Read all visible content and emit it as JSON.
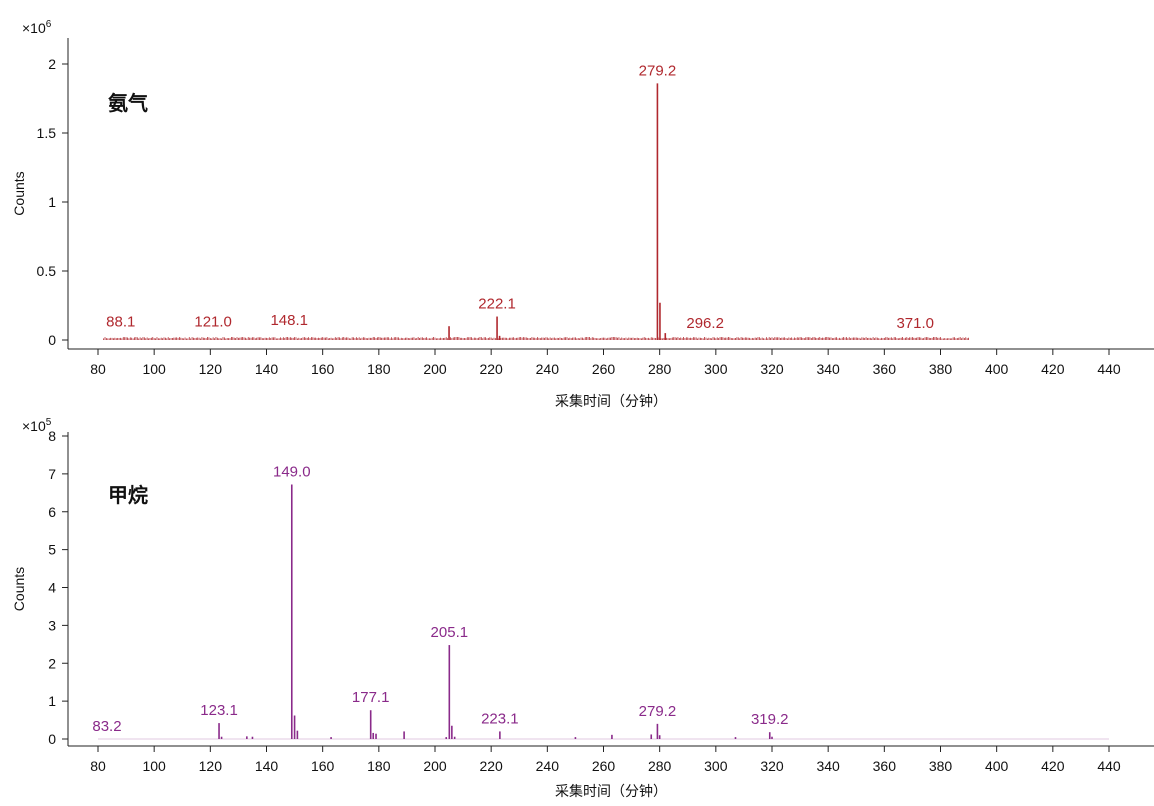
{
  "chart_data": [
    {
      "type": "bar",
      "gas_label": "氨气",
      "color": "#b0282e",
      "ylabel": "Counts",
      "xlabel": "采集时间（分钟）",
      "scale_base": "×10",
      "scale_exponent": "6",
      "ylim": [
        0,
        2.2
      ],
      "yticks": [
        "0",
        "0.5",
        "1",
        "1.5",
        "2"
      ],
      "ytick_values": [
        0,
        0.5,
        1,
        1.5,
        2
      ],
      "xlim": [
        75,
        452
      ],
      "xticks": [
        80,
        100,
        120,
        140,
        160,
        180,
        200,
        220,
        240,
        260,
        280,
        300,
        320,
        340,
        360,
        380,
        400,
        420,
        440
      ],
      "peaks": [
        {
          "x": 205.0,
          "y": 0.1
        },
        {
          "x": 222.1,
          "y": 0.17
        },
        {
          "x": 223.0,
          "y": 0.03
        },
        {
          "x": 279.2,
          "y": 1.86
        },
        {
          "x": 280.1,
          "y": 0.27
        },
        {
          "x": 282.0,
          "y": 0.05
        }
      ],
      "labels": [
        {
          "x": 88.1,
          "text": "88.1",
          "y": 0.04
        },
        {
          "x": 121.0,
          "text": "121.0",
          "y": 0.04
        },
        {
          "x": 148.1,
          "text": "148.1",
          "y": 0.05
        },
        {
          "x": 222.1,
          "text": "222.1",
          "y": 0.17
        },
        {
          "x": 279.2,
          "text": "279.2",
          "y": 1.86
        },
        {
          "x": 296.2,
          "text": "296.2",
          "y": 0.03
        },
        {
          "x": 371.0,
          "text": "371.0",
          "y": 0.03
        }
      ],
      "baseline_range": [
        82,
        390
      ]
    },
    {
      "type": "bar",
      "gas_label": "甲烷",
      "color": "#8a2a8a",
      "ylabel": "Counts",
      "xlabel": "采集时间（分钟）",
      "scale_base": "×10",
      "scale_exponent": "5",
      "ylim": [
        0,
        8
      ],
      "yticks": [
        "0",
        "1",
        "2",
        "3",
        "4",
        "5",
        "6",
        "7",
        "8"
      ],
      "ytick_values": [
        0,
        1,
        2,
        3,
        4,
        5,
        6,
        7,
        8
      ],
      "xlim": [
        75,
        452
      ],
      "xticks": [
        80,
        100,
        120,
        140,
        160,
        180,
        200,
        220,
        240,
        260,
        280,
        300,
        320,
        340,
        360,
        380,
        400,
        420,
        440
      ],
      "peaks": [
        {
          "x": 123.1,
          "y": 0.42
        },
        {
          "x": 124.0,
          "y": 0.06
        },
        {
          "x": 133.0,
          "y": 0.07
        },
        {
          "x": 135.0,
          "y": 0.06
        },
        {
          "x": 149.0,
          "y": 6.72
        },
        {
          "x": 150.0,
          "y": 0.62
        },
        {
          "x": 151.0,
          "y": 0.22
        },
        {
          "x": 163.0,
          "y": 0.05
        },
        {
          "x": 177.1,
          "y": 0.76
        },
        {
          "x": 178.0,
          "y": 0.16
        },
        {
          "x": 179.0,
          "y": 0.14
        },
        {
          "x": 189.0,
          "y": 0.2
        },
        {
          "x": 204.0,
          "y": 0.05
        },
        {
          "x": 205.1,
          "y": 2.48
        },
        {
          "x": 206.0,
          "y": 0.35
        },
        {
          "x": 207.0,
          "y": 0.06
        },
        {
          "x": 223.1,
          "y": 0.2
        },
        {
          "x": 250.0,
          "y": 0.05
        },
        {
          "x": 263.0,
          "y": 0.11
        },
        {
          "x": 277.0,
          "y": 0.12
        },
        {
          "x": 279.2,
          "y": 0.4
        },
        {
          "x": 280.0,
          "y": 0.1
        },
        {
          "x": 307.0,
          "y": 0.05
        },
        {
          "x": 319.2,
          "y": 0.18
        },
        {
          "x": 320.0,
          "y": 0.06
        }
      ],
      "labels": [
        {
          "x": 83.2,
          "text": "83.2",
          "y": 0.0
        },
        {
          "x": 123.1,
          "text": "123.1",
          "y": 0.42
        },
        {
          "x": 149.0,
          "text": "149.0",
          "y": 6.72
        },
        {
          "x": 177.1,
          "text": "177.1",
          "y": 0.76
        },
        {
          "x": 205.1,
          "text": "205.1",
          "y": 2.48
        },
        {
          "x": 223.1,
          "text": "223.1",
          "y": 0.2
        },
        {
          "x": 279.2,
          "text": "279.2",
          "y": 0.4
        },
        {
          "x": 319.2,
          "text": "319.2",
          "y": 0.18
        }
      ],
      "baseline_range": null
    }
  ]
}
